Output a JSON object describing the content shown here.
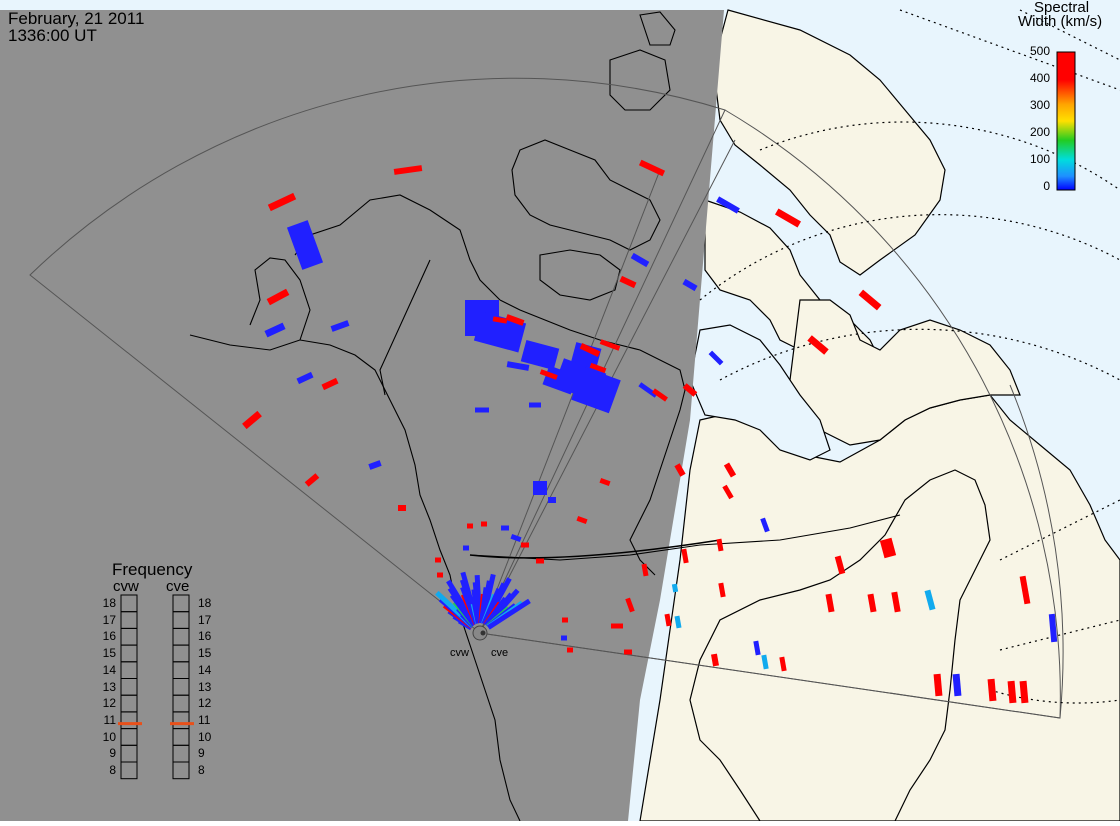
{
  "header": {
    "date": "February, 21 2011",
    "time": "1336:00 UT"
  },
  "colorbar": {
    "title_line1": "Spectral",
    "title_line2": "Width (km/s)",
    "ticks": [
      "500",
      "400",
      "300",
      "200",
      "100",
      "0"
    ],
    "colors": [
      "#ff0000",
      "#ff8c00",
      "#ffd700",
      "#22cc22",
      "#00dddd",
      "#1e90ff",
      "#0000ff"
    ]
  },
  "frequency": {
    "title": "Frequency",
    "radars": [
      "cvw",
      "cve"
    ],
    "scale": [
      "18",
      "17",
      "16",
      "15",
      "14",
      "13",
      "12",
      "11",
      "10",
      "9",
      "8"
    ],
    "cvw_mhz": 10.8,
    "cve_mhz": 10.8,
    "marker_color": "#e8501a"
  },
  "sites": [
    "cvw",
    "cve"
  ],
  "map_colors": {
    "night": "#909090",
    "day_land": "#f8f5e6",
    "day_ocean": "#e8f5fd",
    "coast": "#000000",
    "echo_low": "#2020ff",
    "echo_high": "#ff0000",
    "echo_mid": "#11aaee"
  }
}
